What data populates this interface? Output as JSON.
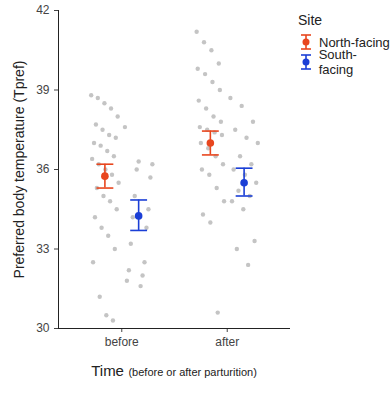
{
  "chart_data": {
    "type": "scatter",
    "y_label": "Preferred body temperature (Tpref)",
    "x_label": "Time",
    "x_label_note": "(before or after parturition)",
    "legend_title": "Site",
    "legend": "right",
    "categories": [
      "before",
      "after"
    ],
    "ylim": [
      30,
      42
    ],
    "yticks": [
      30,
      33,
      36,
      39,
      42
    ],
    "series": [
      {
        "name": "North-facing",
        "color": "#e8461e",
        "values": [
          35.75,
          37.0
        ],
        "ci_low": [
          35.3,
          36.55
        ],
        "ci_high": [
          36.2,
          37.45
        ],
        "raw": [
          [
            38.8,
            38.7,
            38.5,
            38.3,
            38.0,
            37.7,
            37.5,
            37.3,
            37.2,
            37.0,
            36.9,
            36.7,
            36.5,
            36.4,
            36.2,
            36.0,
            35.8,
            35.5,
            35.3,
            35.0,
            34.8,
            34.5,
            34.2,
            33.8,
            33.5,
            33.0,
            32.5,
            31.2,
            30.5,
            30.3
          ],
          [
            41.2,
            40.8,
            40.5,
            40.0,
            39.8,
            39.6,
            39.3,
            39.0,
            38.6,
            38.3,
            38.0,
            37.8,
            37.6,
            37.5,
            37.4,
            37.3,
            37.0,
            36.8,
            36.5,
            36.2,
            36.0,
            35.8,
            35.3,
            34.8,
            34.3,
            34.0,
            30.6
          ]
        ]
      },
      {
        "name": "South-facing",
        "color": "#1b3fd6",
        "values": [
          34.25,
          35.5
        ],
        "ci_low": [
          33.7,
          35.0
        ],
        "ci_high": [
          34.85,
          36.05
        ],
        "raw": [
          [
            37.6,
            36.3,
            36.2,
            36.0,
            35.7,
            35.0,
            34.5,
            34.2,
            33.8,
            33.2,
            32.5,
            32.2,
            32.0,
            31.8,
            31.6
          ],
          [
            38.7,
            38.4,
            37.8,
            37.5,
            37.2,
            37.0,
            36.5,
            36.2,
            36.0,
            35.8,
            35.5,
            35.2,
            35.0,
            34.8,
            34.5,
            33.3,
            33.0,
            32.4
          ]
        ]
      }
    ]
  }
}
